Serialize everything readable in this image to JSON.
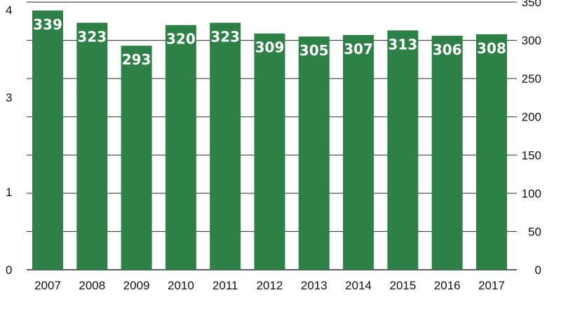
{
  "chart_data": {
    "type": "bar",
    "categories": [
      "2007",
      "2008",
      "2009",
      "2010",
      "2011",
      "2012",
      "2013",
      "2014",
      "2015",
      "2016",
      "2017"
    ],
    "values": [
      339,
      323,
      293,
      320,
      323,
      309,
      305,
      307,
      313,
      306,
      308
    ],
    "data_labels": [
      "339",
      "323",
      "293",
      "320",
      "323",
      "309",
      "305",
      "307",
      "313",
      "306",
      "308"
    ],
    "ylim": [
      0,
      350
    ],
    "y_right_ticks": [
      "0",
      "50",
      "100",
      "150",
      "200",
      "250",
      "300",
      "350"
    ],
    "y_left_ticks": [
      "0",
      "1",
      "3",
      "4"
    ],
    "grid": true,
    "colors": {
      "bar": "#2e8146",
      "grid": "#2a2a2a",
      "label": "#ffffff",
      "text": "#111111"
    }
  }
}
